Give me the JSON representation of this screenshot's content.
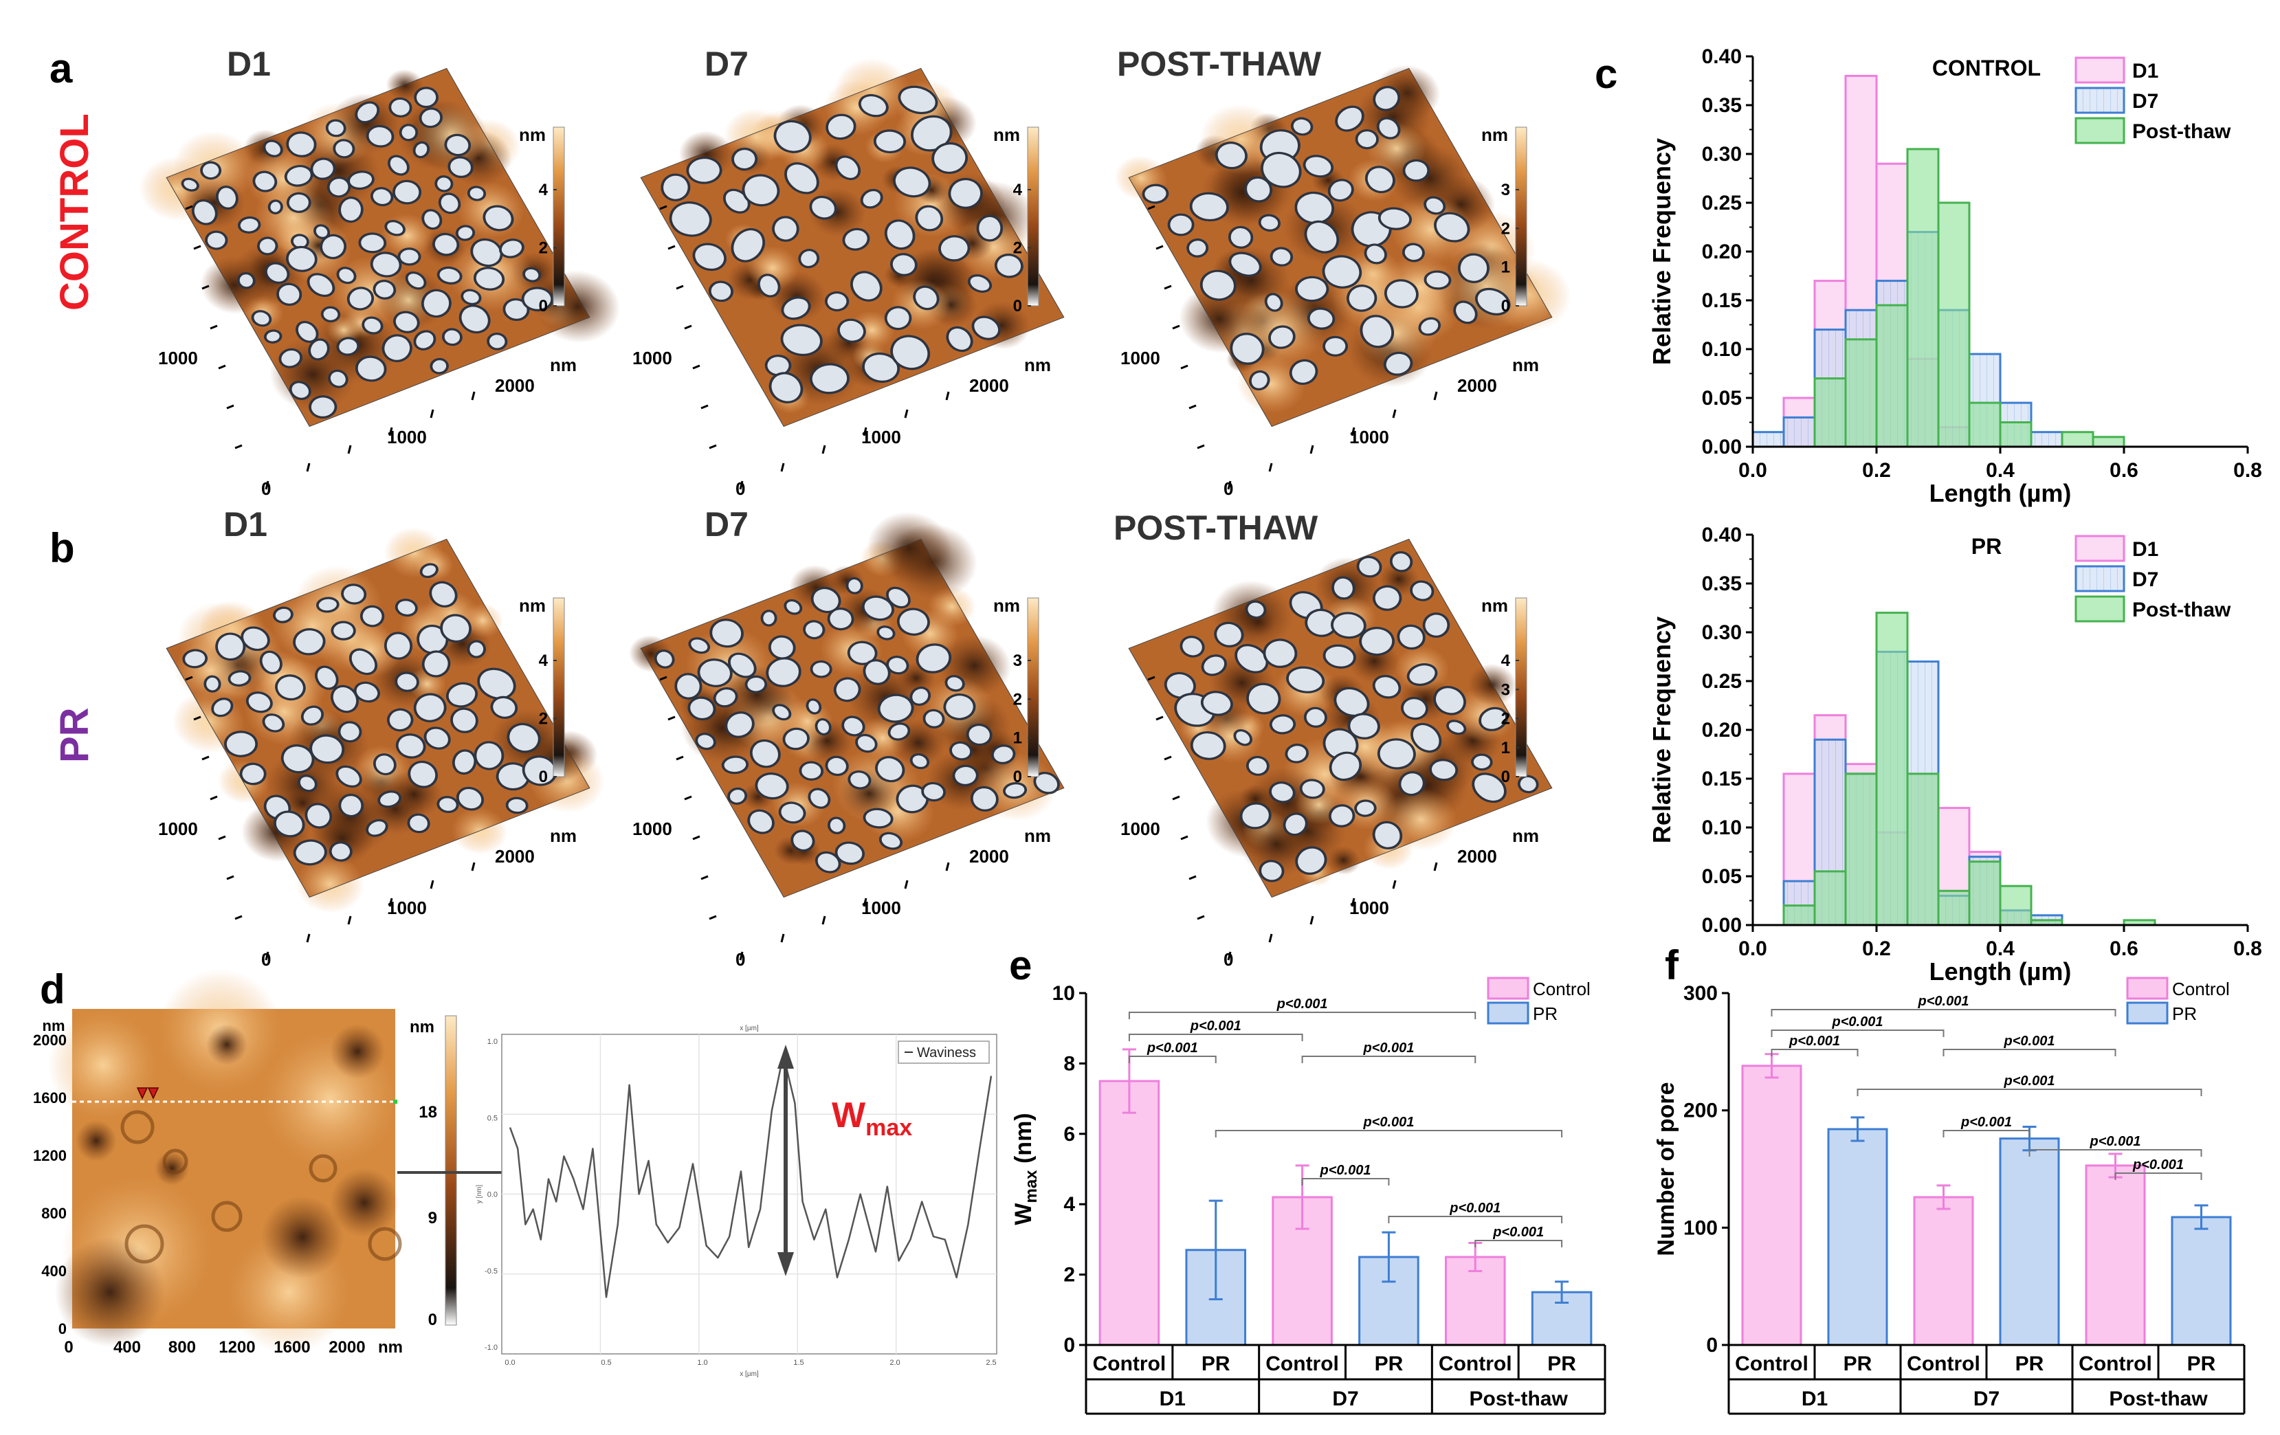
{
  "panel_letters": [
    "a",
    "b",
    "c",
    "d",
    "e",
    "f"
  ],
  "row_labels": {
    "control": "CONTROL",
    "pr": "PR"
  },
  "afm_titles": [
    "D1",
    "D7",
    "POST-THAW"
  ],
  "colors": {
    "control_row": "#ee1c25",
    "pr_row": "#7b2fa0",
    "d1_fill": "#fbc7ee",
    "d1_edge": "#ee7fdc",
    "d7_fill": "#c5d8f3",
    "d7_edge": "#3d7ed3",
    "post_fill": "#bfeac5",
    "post_edge": "#45b24f",
    "wmax_label": "#e81b22",
    "afm_dark": "#2b1d14",
    "afm_mid": "#b8672b",
    "afm_light": "#f3d4a4",
    "pore": "#dde4ec"
  },
  "afm_maps": [
    {
      "row": "CONTROL",
      "title": "D1",
      "scale_unit": "nm",
      "scale_ticks": [
        "4",
        "2",
        "0"
      ],
      "axis_unit": "nm",
      "x_ticks": [
        "0",
        "1000",
        "2000"
      ],
      "y_ticks": [
        "1000"
      ]
    },
    {
      "row": "CONTROL",
      "title": "D7",
      "scale_unit": "nm",
      "scale_ticks": [
        "4",
        "2",
        "0"
      ],
      "axis_unit": "nm",
      "x_ticks": [
        "0",
        "1000",
        "2000"
      ],
      "y_ticks": [
        "1000"
      ]
    },
    {
      "row": "CONTROL",
      "title": "POST-THAW",
      "scale_unit": "nm",
      "scale_ticks": [
        "3",
        "2",
        "1",
        "0"
      ],
      "axis_unit": "nm",
      "x_ticks": [
        "0",
        "1000",
        "2000"
      ],
      "y_ticks": [
        "1000"
      ]
    },
    {
      "row": "PR",
      "title": "D1",
      "scale_unit": "nm",
      "scale_ticks": [
        "4",
        "2",
        "0"
      ],
      "axis_unit": "nm",
      "x_ticks": [
        "0",
        "1000",
        "2000"
      ],
      "y_ticks": [
        "1000"
      ]
    },
    {
      "row": "PR",
      "title": "D7",
      "scale_unit": "nm",
      "scale_ticks": [
        "3",
        "2",
        "1",
        "0"
      ],
      "axis_unit": "nm",
      "x_ticks": [
        "0",
        "1000",
        "2000"
      ],
      "y_ticks": [
        "1000"
      ]
    },
    {
      "row": "PR",
      "title": "POST-THAW",
      "scale_unit": "nm",
      "scale_ticks": [
        "4",
        "3",
        "2",
        "1",
        "0"
      ],
      "axis_unit": "nm",
      "x_ticks": [
        "0",
        "1000",
        "2000"
      ],
      "y_ticks": [
        "1000"
      ]
    }
  ],
  "panel_d": {
    "map": {
      "x_ticks": [
        "0",
        "400",
        "800",
        "1200",
        "1600",
        "2000"
      ],
      "x_unit": "nm",
      "y_ticks": [
        "0",
        "400",
        "800",
        "1200",
        "1600",
        "2000"
      ],
      "y_unit": "nm",
      "scale_unit": "nm",
      "scale_ticks": [
        "18",
        "9",
        "0"
      ]
    },
    "profile": {
      "legend": "Waviness",
      "x_label": "x [µm]",
      "y_label": "y [nm]",
      "x_ticks": [
        "0.0",
        "0.5",
        "1.0",
        "1.5",
        "2.0",
        "2.5"
      ],
      "y_ticks": [
        "1.0",
        "0.5",
        "0.0",
        "-0.5",
        "-1.0"
      ],
      "annotation": "W",
      "annotation_sub": "max"
    }
  },
  "chart_data": [
    {
      "panel": "c-top",
      "type": "bar",
      "subtype": "histogram",
      "title": "CONTROL",
      "xlabel": "Length (µm)",
      "ylabel": "Relative Frequency",
      "xlim": [
        0.0,
        0.8
      ],
      "ylim": [
        0.0,
        0.4
      ],
      "x_ticks": [
        "0.0",
        "0.2",
        "0.4",
        "0.6",
        "0.8"
      ],
      "y_ticks": [
        "0.00",
        "0.05",
        "0.10",
        "0.15",
        "0.20",
        "0.25",
        "0.30",
        "0.35",
        "0.40"
      ],
      "bin_width": 0.05,
      "bin_starts": [
        0.0,
        0.05,
        0.1,
        0.15,
        0.2,
        0.25,
        0.3,
        0.35,
        0.4,
        0.45,
        0.5,
        0.55
      ],
      "legend_position": "top-right",
      "series": [
        {
          "name": "D1",
          "values": [
            0.0,
            0.05,
            0.17,
            0.38,
            0.29,
            0.09,
            0.02,
            0.0,
            0.0,
            0.0,
            0.0,
            0.0
          ]
        },
        {
          "name": "D7",
          "values": [
            0.015,
            0.03,
            0.12,
            0.14,
            0.17,
            0.22,
            0.14,
            0.095,
            0.045,
            0.015,
            0.0,
            0.0
          ]
        },
        {
          "name": "Post-thaw",
          "values": [
            0.0,
            0.0,
            0.07,
            0.11,
            0.145,
            0.305,
            0.25,
            0.045,
            0.025,
            0.0,
            0.015,
            0.01
          ]
        }
      ]
    },
    {
      "panel": "c-bottom",
      "type": "bar",
      "subtype": "histogram",
      "title": "PR",
      "xlabel": "Length (µm)",
      "ylabel": "Relative Frequency",
      "xlim": [
        0.0,
        0.8
      ],
      "ylim": [
        0.0,
        0.4
      ],
      "x_ticks": [
        "0.0",
        "0.2",
        "0.4",
        "0.6",
        "0.8"
      ],
      "y_ticks": [
        "0.00",
        "0.05",
        "0.10",
        "0.15",
        "0.20",
        "0.25",
        "0.30",
        "0.35",
        "0.40"
      ],
      "bin_width": 0.05,
      "bin_starts": [
        0.0,
        0.05,
        0.1,
        0.15,
        0.2,
        0.25,
        0.3,
        0.35,
        0.4,
        0.45,
        0.5,
        0.55,
        0.6
      ],
      "legend_position": "top-right",
      "series": [
        {
          "name": "D1",
          "values": [
            0.0,
            0.155,
            0.215,
            0.165,
            0.095,
            0.155,
            0.12,
            0.075,
            0.015,
            0.005,
            0.0,
            0.0,
            0.0
          ]
        },
        {
          "name": "D7",
          "values": [
            0.0,
            0.045,
            0.19,
            0.155,
            0.28,
            0.27,
            0.03,
            0.07,
            0.015,
            0.01,
            0.0,
            0.0,
            0.0
          ]
        },
        {
          "name": "Post-thaw",
          "values": [
            0.0,
            0.02,
            0.055,
            0.155,
            0.32,
            0.155,
            0.035,
            0.065,
            0.04,
            0.005,
            0.0,
            0.0,
            0.005
          ]
        }
      ]
    },
    {
      "panel": "e",
      "type": "bar",
      "title": "",
      "ylabel": "W",
      "ylabel_sub": "max",
      "ylabel_unit": " (nm)",
      "ylim": [
        0,
        10
      ],
      "y_ticks": [
        "0",
        "2",
        "4",
        "6",
        "8",
        "10"
      ],
      "categories": [
        "Control",
        "PR",
        "Control",
        "PR",
        "Control",
        "PR"
      ],
      "groups": [
        "D1",
        "D7",
        "Post-thaw"
      ],
      "values": [
        7.5,
        2.7,
        4.2,
        2.5,
        2.5,
        1.5
      ],
      "errors": [
        0.9,
        1.4,
        0.9,
        0.7,
        0.4,
        0.3
      ],
      "legend": [
        "Control",
        "PR"
      ],
      "legend_position": "top-right",
      "significance": [
        {
          "from": 0,
          "to": 4,
          "label": "p<0.001"
        },
        {
          "from": 0,
          "to": 2,
          "label": "p<0.001"
        },
        {
          "from": 2,
          "to": 4,
          "label": "p<0.001"
        },
        {
          "from": 0,
          "to": 1,
          "label": "p<0.001"
        },
        {
          "from": 1,
          "to": 5,
          "label": "p<0.001"
        },
        {
          "from": 2,
          "to": 3,
          "label": "p<0.001"
        },
        {
          "from": 3,
          "to": 5,
          "label": "p<0.001"
        },
        {
          "from": 4,
          "to": 5,
          "label": "p<0.001"
        }
      ]
    },
    {
      "panel": "f",
      "type": "bar",
      "title": "",
      "ylabel": "Number of pore",
      "ylim": [
        0,
        300
      ],
      "y_ticks": [
        "0",
        "100",
        "200",
        "300"
      ],
      "categories": [
        "Control",
        "PR",
        "Control",
        "PR",
        "Control",
        "PR"
      ],
      "groups": [
        "D1",
        "D7",
        "Post-thaw"
      ],
      "values": [
        238,
        184,
        126,
        176,
        153,
        109
      ],
      "errors": [
        10,
        10,
        10,
        10,
        10,
        10
      ],
      "legend": [
        "Control",
        "PR"
      ],
      "legend_position": "top-right",
      "significance": [
        {
          "from": 0,
          "to": 4,
          "label": "p<0.001"
        },
        {
          "from": 0,
          "to": 2,
          "label": "p<0.001"
        },
        {
          "from": 0,
          "to": 1,
          "label": "p<0.001"
        },
        {
          "from": 2,
          "to": 4,
          "label": "p<0.001"
        },
        {
          "from": 1,
          "to": 5,
          "label": "p<0.001"
        },
        {
          "from": 2,
          "to": 3,
          "label": "p<0.001"
        },
        {
          "from": 3,
          "to": 5,
          "label": "p<0.001"
        },
        {
          "from": 4,
          "to": 5,
          "label": "p<0.001"
        }
      ]
    }
  ]
}
